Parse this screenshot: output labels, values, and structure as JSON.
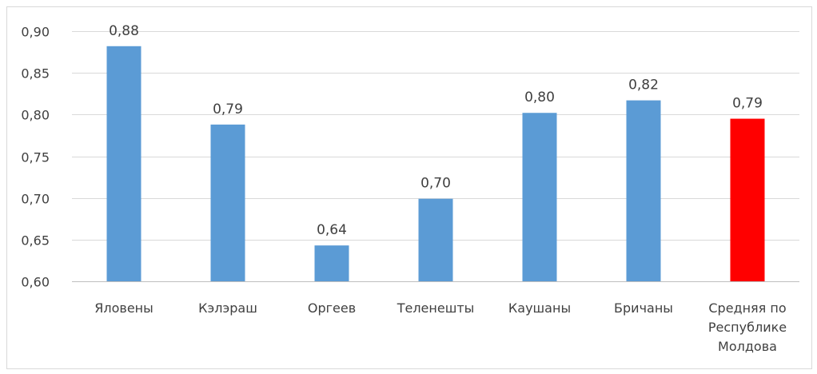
{
  "chart_data": {
    "type": "bar",
    "categories": [
      [
        "Яловены"
      ],
      [
        "Кэлэраш"
      ],
      [
        "Оргеев"
      ],
      [
        "Теленешты"
      ],
      [
        "Каушаны"
      ],
      [
        "Бричаны"
      ],
      [
        "Средняя по",
        "Республике",
        "Молдова"
      ]
    ],
    "values": [
      0.882,
      0.788,
      0.643,
      0.699,
      0.802,
      0.817,
      0.795
    ],
    "data_labels": [
      "0,88",
      "0,79",
      "0,64",
      "0,70",
      "0,80",
      "0,82",
      "0,79"
    ],
    "y_ticks": [
      "0,60",
      "0,65",
      "0,70",
      "0,75",
      "0,80",
      "0,85",
      "0,90"
    ],
    "ylim": [
      0.6,
      0.9
    ],
    "colors": [
      "#5b9bd5",
      "#5b9bd5",
      "#5b9bd5",
      "#5b9bd5",
      "#5b9bd5",
      "#5b9bd5",
      "#ff0000"
    ],
    "grid": true,
    "legend": false
  }
}
